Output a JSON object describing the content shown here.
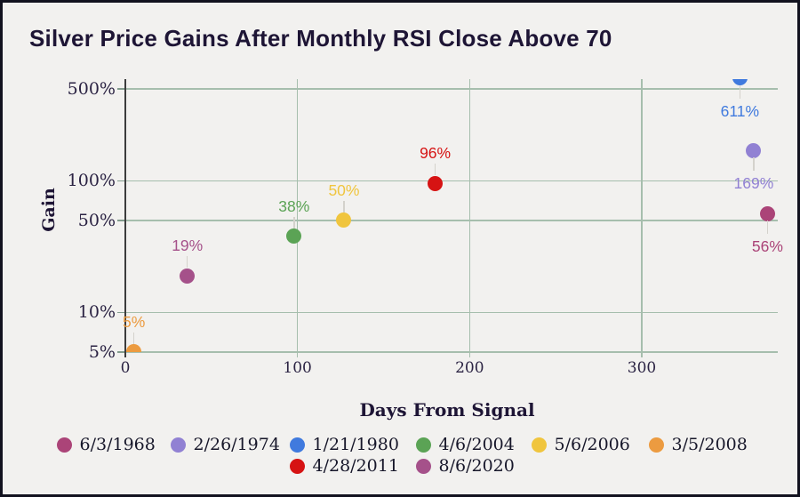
{
  "window_title": "Silver Price Gains After Monthly RSI Close Above 70",
  "colors": {
    "background": "#f2f1ef",
    "frame_border": "#12121f",
    "title_text": "#1e1535",
    "gridline": "#a6bead",
    "y_axis_line": "#3c3c3c",
    "tick_text": "#2b2343",
    "connector": "#d4d2cc",
    "legend_text": "#17172a"
  },
  "chart_data": {
    "type": "scatter",
    "title": "Silver Price Gains After Monthly RSI Close Above 70",
    "xlabel": "Days From Signal",
    "ylabel": "Gain",
    "x_scale": "linear",
    "y_scale": "log",
    "grid": true,
    "legend_position": "bottom",
    "xlim": [
      0,
      379
    ],
    "ylim_gain_pct": [
      5,
      590
    ],
    "x_ticks": [
      0,
      100,
      200,
      300
    ],
    "y_ticks": [
      {
        "value": 5,
        "label": "5%"
      },
      {
        "value": 10,
        "label": "10%"
      },
      {
        "value": 50,
        "label": "50%"
      },
      {
        "value": 100,
        "label": "100%"
      },
      {
        "value": 500,
        "label": "500%"
      }
    ],
    "series": [
      {
        "name": "6/3/1968",
        "color": "#ab4478",
        "days_from_signal": 373,
        "gain_pct": 56,
        "point_label": "56%",
        "label_side": "below"
      },
      {
        "name": "2/26/1974",
        "color": "#9181d3",
        "days_from_signal": 365,
        "gain_pct": 169,
        "point_label": "169%",
        "label_side": "below"
      },
      {
        "name": "1/21/1980",
        "color": "#407ade",
        "days_from_signal": 357,
        "gain_pct": 611,
        "point_label": "611%",
        "label_side": "below"
      },
      {
        "name": "4/6/2004",
        "color": "#5ba355",
        "days_from_signal": 98,
        "gain_pct": 38,
        "point_label": "38%",
        "label_side": "above"
      },
      {
        "name": "5/6/2006",
        "color": "#f0c53e",
        "days_from_signal": 127,
        "gain_pct": 50,
        "point_label": "50%",
        "label_side": "above"
      },
      {
        "name": "3/5/2008",
        "color": "#ec9b40",
        "days_from_signal": 5,
        "gain_pct": 5,
        "point_label": "5%",
        "label_side": "above"
      },
      {
        "name": "4/28/2011",
        "color": "#d61313",
        "days_from_signal": 180,
        "gain_pct": 96,
        "point_label": "96%",
        "label_side": "above"
      },
      {
        "name": "8/6/2020",
        "color": "#a5518a",
        "days_from_signal": 36,
        "gain_pct": 19,
        "point_label": "19%",
        "label_side": "above"
      }
    ],
    "legend_rows": [
      [
        "6/3/1968",
        "2/26/1974",
        "1/21/1980",
        "4/6/2004",
        "5/6/2006",
        "3/5/2008"
      ],
      [
        "4/28/2011",
        "8/6/2020"
      ]
    ]
  }
}
